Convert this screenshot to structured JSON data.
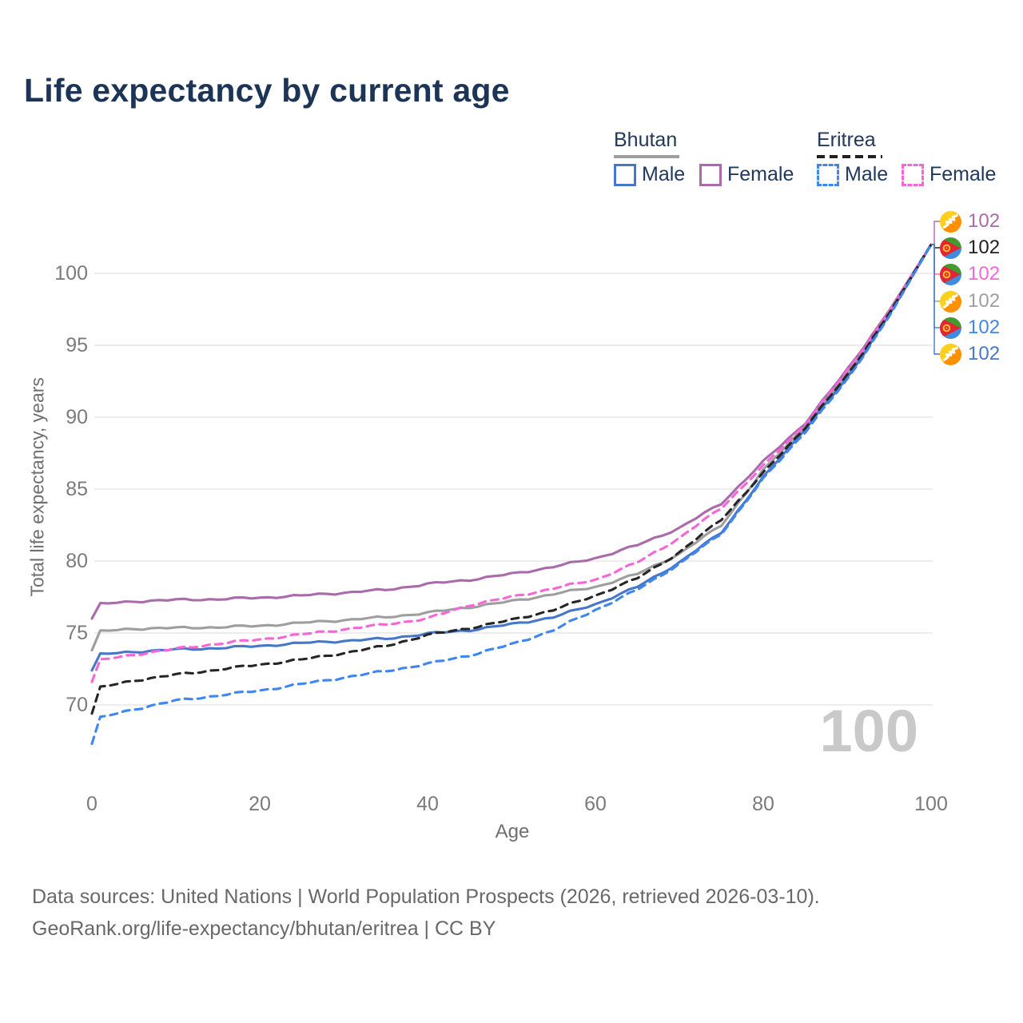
{
  "title": "Life expectancy by current age",
  "watermark": "100",
  "legend": {
    "groups": [
      {
        "country": "Bhutan",
        "line_style": "solid",
        "underline_color": "#9e9e9e",
        "items": [
          {
            "label": "Male",
            "color": "#4677c8"
          },
          {
            "label": "Female",
            "color": "#a96ba9"
          }
        ]
      },
      {
        "country": "Eritrea",
        "line_style": "dashed",
        "underline_color": "#212121",
        "items": [
          {
            "label": "Male",
            "color": "#3f86ee"
          },
          {
            "label": "Female",
            "color": "#f766d6"
          }
        ]
      }
    ]
  },
  "chart_data": {
    "type": "line",
    "title": "Life expectancy by current age",
    "xlabel": "Age",
    "ylabel": "Total life expectancy, years",
    "x_ticks": [
      0,
      20,
      40,
      60,
      80,
      100
    ],
    "y_ticks": [
      70,
      75,
      80,
      85,
      90,
      95,
      100
    ],
    "xlim": [
      0,
      100
    ],
    "ylim": [
      66.5,
      103
    ],
    "grid": "horizontal-only",
    "legend_position": "top-right",
    "ages": [
      0,
      1,
      5,
      10,
      15,
      20,
      25,
      30,
      35,
      40,
      45,
      50,
      55,
      60,
      65,
      70,
      75,
      80,
      85,
      90,
      95,
      100
    ],
    "series": [
      {
        "name": "Bhutan Both sexes",
        "country": "Bhutan",
        "sex": "both",
        "color": "#9e9e9e",
        "dash": false,
        "values": [
          73.8,
          75.1,
          75.3,
          75.35,
          75.4,
          75.5,
          75.7,
          75.9,
          76.1,
          76.4,
          76.8,
          77.2,
          77.7,
          78.2,
          79.1,
          80.5,
          82.5,
          86.3,
          89.4,
          93.0,
          97.2,
          102
        ]
      },
      {
        "name": "Bhutan Female",
        "country": "Bhutan",
        "sex": "female",
        "color": "#a96ba9",
        "dash": false,
        "values": [
          76.0,
          77.0,
          77.2,
          77.3,
          77.35,
          77.45,
          77.6,
          77.8,
          78.0,
          78.4,
          78.7,
          79.1,
          79.6,
          80.2,
          81.1,
          82.3,
          84.0,
          86.9,
          89.6,
          93.3,
          97.4,
          102
        ]
      },
      {
        "name": "Bhutan Male",
        "country": "Bhutan",
        "sex": "male",
        "color": "#4677c8",
        "dash": false,
        "values": [
          72.4,
          73.5,
          73.7,
          73.85,
          73.95,
          74.1,
          74.3,
          74.45,
          74.6,
          74.95,
          75.2,
          75.6,
          76.1,
          77.0,
          78.2,
          79.9,
          82.0,
          85.8,
          89.2,
          92.7,
          97.1,
          102
        ]
      },
      {
        "name": "Eritrea Female",
        "country": "Eritrea",
        "sex": "female",
        "color": "#f766d6",
        "dash": true,
        "values": [
          71.6,
          73.1,
          73.5,
          73.9,
          74.25,
          74.55,
          74.9,
          75.25,
          75.6,
          76.0,
          76.95,
          77.5,
          78.1,
          78.7,
          79.9,
          81.6,
          83.7,
          86.6,
          89.5,
          93.2,
          97.3,
          102
        ]
      },
      {
        "name": "Eritrea Both sexes",
        "country": "Eritrea",
        "sex": "both",
        "color": "#262626",
        "dash": true,
        "values": [
          69.4,
          71.2,
          71.7,
          72.1,
          72.45,
          72.8,
          73.15,
          73.6,
          74.1,
          74.85,
          75.35,
          75.9,
          76.6,
          77.6,
          78.8,
          80.6,
          82.9,
          86.1,
          89.3,
          92.9,
          97.2,
          102
        ]
      },
      {
        "name": "Eritrea Male",
        "country": "Eritrea",
        "sex": "male",
        "color": "#3f86ee",
        "dash": true,
        "values": [
          67.3,
          69.1,
          69.7,
          70.3,
          70.65,
          71.0,
          71.45,
          71.9,
          72.35,
          72.85,
          73.45,
          74.2,
          75.2,
          76.6,
          78.0,
          79.8,
          81.9,
          85.7,
          89.0,
          92.6,
          97.0,
          102
        ]
      }
    ]
  },
  "end_labels": [
    {
      "value": "102",
      "flag": "bhutan",
      "series": "Bhutan Female",
      "color": "#a96ba9"
    },
    {
      "value": "102",
      "flag": "eritrea",
      "series": "Eritrea Both sexes",
      "color": "#212121"
    },
    {
      "value": "102",
      "flag": "eritrea",
      "series": "Eritrea Female",
      "color": "#f766d6"
    },
    {
      "value": "102",
      "flag": "bhutan",
      "series": "Bhutan Both sexes",
      "color": "#9e9e9e"
    },
    {
      "value": "102",
      "flag": "eritrea",
      "series": "Eritrea Male",
      "color": "#3f86ee"
    },
    {
      "value": "102",
      "flag": "bhutan",
      "series": "Bhutan Male",
      "color": "#4677c8"
    }
  ],
  "footer": {
    "line1": "Data sources: United Nations | World Population Prospects (2026, retrieved 2026-03-10).",
    "line2": "GeoRank.org/life-expectancy/bhutan/eritrea | CC BY"
  }
}
